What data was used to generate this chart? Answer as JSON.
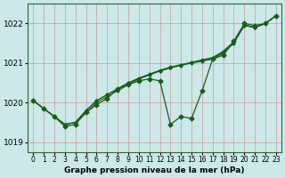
{
  "xlabel": "Graphe pression niveau de la mer (hPa)",
  "background_color": "#cce8e8",
  "grid_color": "#cc9999",
  "line_color": "#1a5c1a",
  "xlim": [
    -0.5,
    23.5
  ],
  "ylim": [
    1018.75,
    1022.5
  ],
  "yticks": [
    1019,
    1020,
    1021,
    1022
  ],
  "xticks": [
    0,
    1,
    2,
    3,
    4,
    5,
    6,
    7,
    8,
    9,
    10,
    11,
    12,
    13,
    14,
    15,
    16,
    17,
    18,
    19,
    20,
    21,
    22,
    23
  ],
  "series": [
    {
      "y": [
        1020.05,
        1019.85,
        1019.65,
        1019.4,
        1019.45,
        1019.75,
        1019.95,
        1020.1,
        1020.35,
        1020.45,
        1020.55,
        1020.65,
        1020.55,
        1019.45,
        1019.6,
        1019.6,
        1020.3,
        1021.1,
        1021.2,
        1021.55,
        1022.0,
        1021.95,
        1022.0,
        1022.2
      ],
      "has_markers": true
    },
    {
      "y": [
        1020.05,
        1019.85,
        1019.65,
        1019.4,
        1019.45,
        1019.75,
        1019.95,
        1020.1,
        1020.35,
        1020.45,
        1020.55,
        1020.65,
        1020.75,
        1020.75,
        1020.8,
        1020.85,
        1020.9,
        1021.1,
        1021.25,
        1021.55,
        1022.0,
        1021.95,
        1022.0,
        1022.2
      ],
      "has_markers": false
    },
    {
      "y": [
        1020.05,
        1019.85,
        1019.65,
        1019.4,
        1019.45,
        1019.75,
        1019.95,
        1020.1,
        1020.35,
        1020.45,
        1020.55,
        1020.65,
        1020.75,
        1020.8,
        1020.85,
        1020.9,
        1020.95,
        1021.1,
        1021.25,
        1021.5,
        1022.0,
        1021.95,
        1022.0,
        1022.2
      ],
      "has_markers": false
    },
    {
      "y": [
        1020.05,
        1019.85,
        1019.65,
        1019.4,
        1019.45,
        1019.75,
        1019.95,
        1020.1,
        1020.35,
        1020.45,
        1020.55,
        1020.65,
        1020.75,
        1020.82,
        1020.88,
        1020.94,
        1021.0,
        1021.1,
        1021.25,
        1021.5,
        1021.95,
        1021.9,
        1022.0,
        1022.2
      ],
      "has_markers": false
    }
  ],
  "wiggly_series": [
    1020.05,
    1019.85,
    1019.65,
    1019.4,
    1019.45,
    1019.75,
    1019.95,
    1020.1,
    1020.35,
    1020.45,
    1020.55,
    1020.6,
    1020.55,
    1019.45,
    1019.65,
    1019.6,
    1020.3,
    1021.1,
    1021.2,
    1021.55,
    1022.0,
    1021.95,
    1022.0,
    1022.2
  ]
}
